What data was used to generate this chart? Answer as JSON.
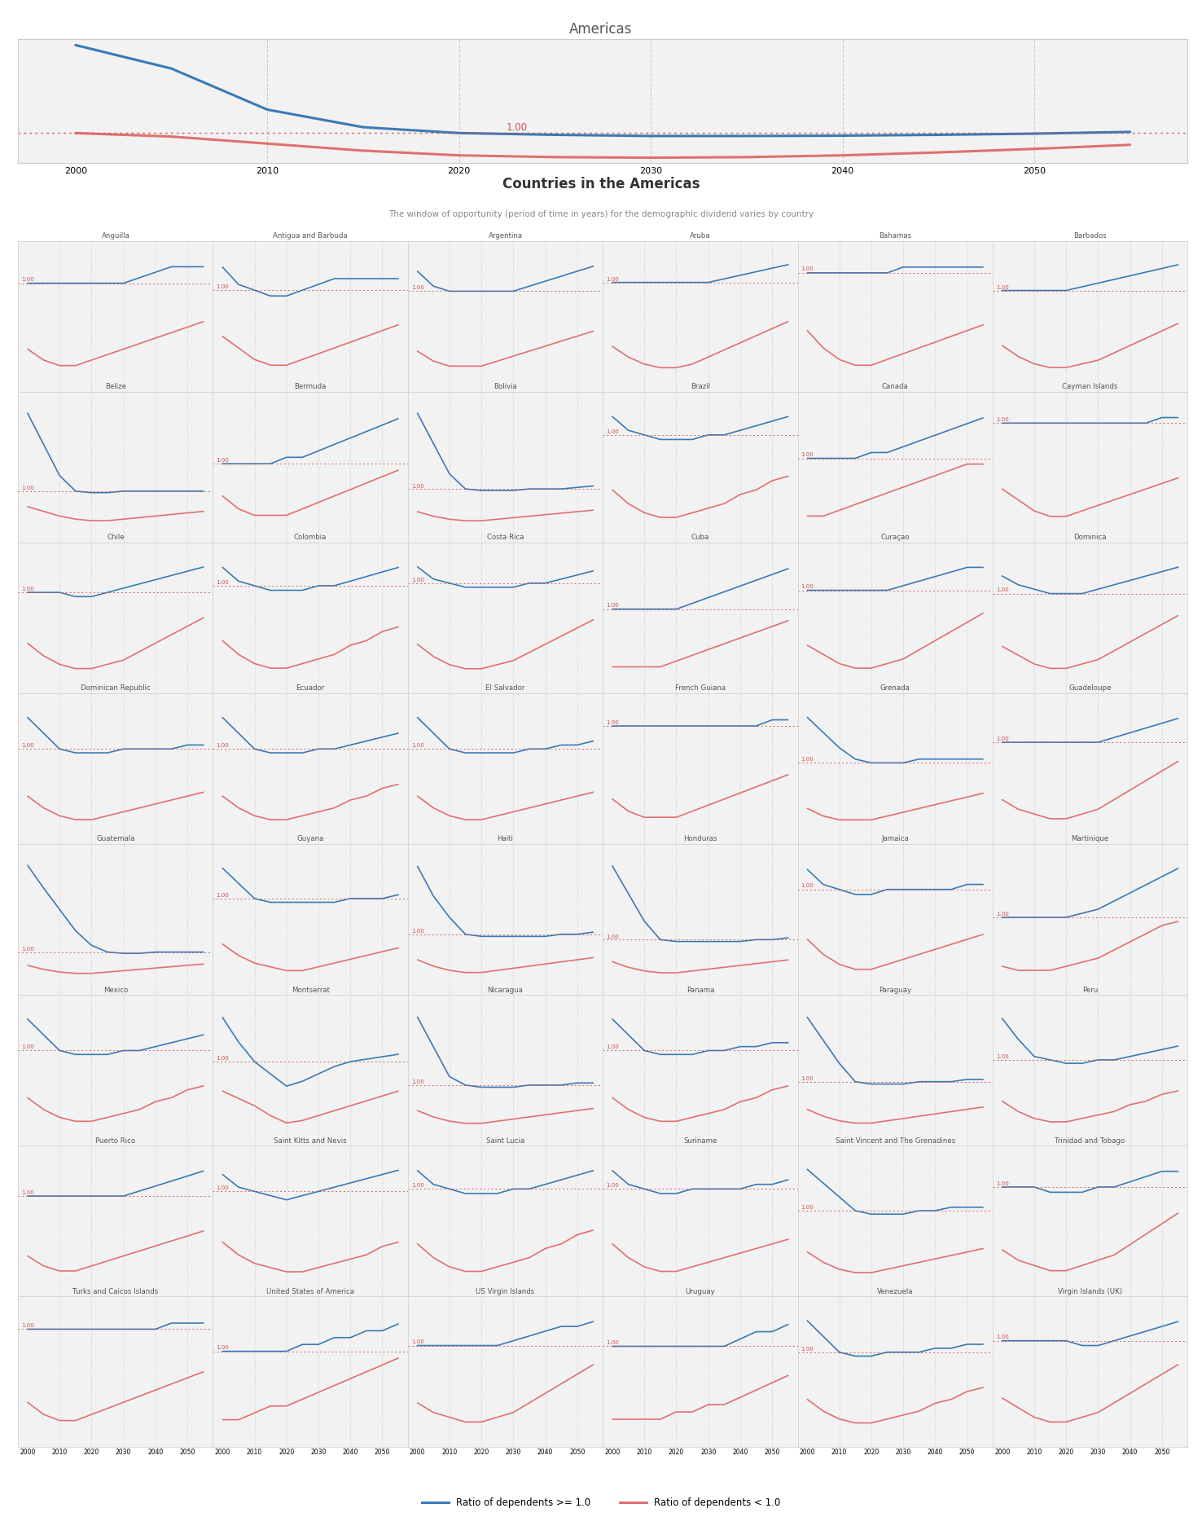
{
  "title_americas": "Americas",
  "title_countries": "Countries in the Americas",
  "subtitle_countries": "The window of opportunity (period of time in years) for the demographic dividend varies by country",
  "legend_blue": "Ratio of dependents >= 1.0",
  "legend_red": "Ratio of dependents < 1.0",
  "years": [
    2000,
    2005,
    2010,
    2015,
    2020,
    2025,
    2030,
    2035,
    2040,
    2045,
    2050,
    2055
  ],
  "blue_color": "#3a7ab5",
  "red_color": "#e07070",
  "ref_color": "#d05050",
  "panel_bg": "#f2f2f2",
  "grid_color": "#cccccc",
  "americas_blue": [
    1.75,
    1.55,
    1.2,
    1.05,
    1.0,
    0.985,
    0.975,
    0.975,
    0.978,
    0.985,
    0.995,
    1.01
  ],
  "americas_red": [
    1.0,
    0.97,
    0.91,
    0.85,
    0.81,
    0.795,
    0.79,
    0.795,
    0.81,
    0.835,
    0.865,
    0.9
  ],
  "countries": [
    "Anguilla",
    "Antigua and Barbuda",
    "Argentina",
    "Aruba",
    "Bahamas",
    "Barbados",
    "Belize",
    "Bermuda",
    "Bolivia",
    "Brazil",
    "Canada",
    "Cayman Islands",
    "Chile",
    "Colombia",
    "Costa Rica",
    "Cuba",
    "Curaçao",
    "Dominica",
    "Dominican Republic",
    "Ecuador",
    "El Salvador",
    "French Guiana",
    "Grenada",
    "Guadeloupe",
    "Guatemala",
    "Guyana",
    "Haiti",
    "Honduras",
    "Jamaica",
    "Martinique",
    "Mexico",
    "Montserrat",
    "Nicaragua",
    "Panama",
    "Paraguay",
    "Peru",
    "Puerto Rico",
    "Saint Kitts and Nevis",
    "Saint Lucia",
    "Suriname",
    "Saint Vincent and The Grenadines",
    "Trinidad and Tobago",
    "Turks and Caicos Islands",
    "United States of America",
    "US Virgin Islands",
    "Uruguay",
    "Venezuela",
    "Virgin Islands (UK)"
  ],
  "country_blue": {
    "Anguilla": [
      1.0,
      1.0,
      1.0,
      1.0,
      1.0,
      1.0,
      1.0,
      1.01,
      1.02,
      1.03,
      1.03,
      1.03
    ],
    "Antigua and Barbuda": [
      1.04,
      1.01,
      1.0,
      0.99,
      0.99,
      1.0,
      1.01,
      1.02,
      1.02,
      1.02,
      1.02,
      1.02
    ],
    "Argentina": [
      1.04,
      1.01,
      1.0,
      1.0,
      1.0,
      1.0,
      1.0,
      1.01,
      1.02,
      1.03,
      1.04,
      1.05
    ],
    "Aruba": [
      1.0,
      1.0,
      1.0,
      1.0,
      1.0,
      1.0,
      1.0,
      1.01,
      1.02,
      1.03,
      1.04,
      1.05
    ],
    "Bahamas": [
      1.0,
      1.0,
      1.0,
      1.0,
      1.0,
      1.0,
      1.01,
      1.01,
      1.01,
      1.01,
      1.01,
      1.01
    ],
    "Barbados": [
      1.0,
      1.0,
      1.0,
      1.0,
      1.0,
      1.01,
      1.02,
      1.03,
      1.04,
      1.05,
      1.06,
      1.07
    ],
    "Belize": [
      1.5,
      1.3,
      1.1,
      1.0,
      0.99,
      0.99,
      1.0,
      1.0,
      1.0,
      1.0,
      1.0,
      1.0
    ],
    "Bermuda": [
      1.0,
      1.0,
      1.0,
      1.0,
      1.01,
      1.01,
      1.02,
      1.03,
      1.04,
      1.05,
      1.06,
      1.07
    ],
    "Bolivia": [
      1.5,
      1.3,
      1.1,
      1.0,
      0.99,
      0.99,
      0.99,
      1.0,
      1.0,
      1.0,
      1.01,
      1.02
    ],
    "Brazil": [
      1.04,
      1.01,
      1.0,
      0.99,
      0.99,
      0.99,
      1.0,
      1.0,
      1.01,
      1.02,
      1.03,
      1.04
    ],
    "Canada": [
      1.0,
      1.0,
      1.0,
      1.0,
      1.01,
      1.01,
      1.02,
      1.03,
      1.04,
      1.05,
      1.06,
      1.07
    ],
    "Cayman Islands": [
      1.0,
      1.0,
      1.0,
      1.0,
      1.0,
      1.0,
      1.0,
      1.0,
      1.0,
      1.0,
      1.01,
      1.01
    ],
    "Chile": [
      1.0,
      1.0,
      1.0,
      0.99,
      0.99,
      1.0,
      1.01,
      1.02,
      1.03,
      1.04,
      1.05,
      1.06
    ],
    "Colombia": [
      1.04,
      1.01,
      1.0,
      0.99,
      0.99,
      0.99,
      1.0,
      1.0,
      1.01,
      1.02,
      1.03,
      1.04
    ],
    "Costa Rica": [
      1.04,
      1.01,
      1.0,
      0.99,
      0.99,
      0.99,
      0.99,
      1.0,
      1.0,
      1.01,
      1.02,
      1.03
    ],
    "Cuba": [
      1.0,
      1.0,
      1.0,
      1.0,
      1.0,
      1.01,
      1.02,
      1.03,
      1.04,
      1.05,
      1.06,
      1.07
    ],
    "Curaçao": [
      1.0,
      1.0,
      1.0,
      1.0,
      1.0,
      1.0,
      1.01,
      1.02,
      1.03,
      1.04,
      1.05,
      1.05
    ],
    "Dominica": [
      1.04,
      1.02,
      1.01,
      1.0,
      1.0,
      1.0,
      1.01,
      1.02,
      1.03,
      1.04,
      1.05,
      1.06
    ],
    "Dominican Republic": [
      1.08,
      1.04,
      1.0,
      0.99,
      0.99,
      0.99,
      1.0,
      1.0,
      1.0,
      1.0,
      1.01,
      1.01
    ],
    "Ecuador": [
      1.08,
      1.04,
      1.0,
      0.99,
      0.99,
      0.99,
      1.0,
      1.0,
      1.01,
      1.02,
      1.03,
      1.04
    ],
    "El Salvador": [
      1.08,
      1.04,
      1.0,
      0.99,
      0.99,
      0.99,
      0.99,
      1.0,
      1.0,
      1.01,
      1.01,
      1.02
    ],
    "French Guiana": [
      1.0,
      1.0,
      1.0,
      1.0,
      1.0,
      1.0,
      1.0,
      1.0,
      1.0,
      1.0,
      1.01,
      1.01
    ],
    "Grenada": [
      1.12,
      1.08,
      1.04,
      1.01,
      1.0,
      1.0,
      1.0,
      1.01,
      1.01,
      1.01,
      1.01,
      1.01
    ],
    "Guadeloupe": [
      1.0,
      1.0,
      1.0,
      1.0,
      1.0,
      1.0,
      1.0,
      1.01,
      1.02,
      1.03,
      1.04,
      1.05
    ],
    "Guatemala": [
      1.65,
      1.48,
      1.32,
      1.16,
      1.05,
      1.0,
      0.99,
      0.99,
      1.0,
      1.0,
      1.0,
      1.0
    ],
    "Guyana": [
      1.08,
      1.04,
      1.0,
      0.99,
      0.99,
      0.99,
      0.99,
      0.99,
      1.0,
      1.0,
      1.0,
      1.01
    ],
    "Haiti": [
      1.32,
      1.18,
      1.08,
      1.0,
      0.99,
      0.99,
      0.99,
      0.99,
      0.99,
      1.0,
      1.0,
      1.01
    ],
    "Honduras": [
      1.4,
      1.25,
      1.1,
      1.0,
      0.99,
      0.99,
      0.99,
      0.99,
      0.99,
      1.0,
      1.0,
      1.01
    ],
    "Jamaica": [
      1.04,
      1.01,
      1.0,
      0.99,
      0.99,
      1.0,
      1.0,
      1.0,
      1.0,
      1.0,
      1.01,
      1.01
    ],
    "Martinique": [
      1.0,
      1.0,
      1.0,
      1.0,
      1.0,
      1.01,
      1.02,
      1.04,
      1.06,
      1.08,
      1.1,
      1.12
    ],
    "Mexico": [
      1.08,
      1.04,
      1.0,
      0.99,
      0.99,
      0.99,
      1.0,
      1.0,
      1.01,
      1.02,
      1.03,
      1.04
    ],
    "Montserrat": [
      1.18,
      1.08,
      1.0,
      0.95,
      0.9,
      0.92,
      0.95,
      0.98,
      1.0,
      1.01,
      1.02,
      1.03
    ],
    "Nicaragua": [
      1.32,
      1.18,
      1.04,
      1.0,
      0.99,
      0.99,
      0.99,
      1.0,
      1.0,
      1.0,
      1.01,
      1.01
    ],
    "Panama": [
      1.08,
      1.04,
      1.0,
      0.99,
      0.99,
      0.99,
      1.0,
      1.0,
      1.01,
      1.01,
      1.02,
      1.02
    ],
    "Paraguay": [
      1.28,
      1.18,
      1.08,
      1.0,
      0.99,
      0.99,
      0.99,
      1.0,
      1.0,
      1.0,
      1.01,
      1.01
    ],
    "Peru": [
      1.12,
      1.06,
      1.01,
      1.0,
      0.99,
      0.99,
      1.0,
      1.0,
      1.01,
      1.02,
      1.03,
      1.04
    ],
    "Puerto Rico": [
      1.0,
      1.0,
      1.0,
      1.0,
      1.0,
      1.0,
      1.0,
      1.01,
      1.02,
      1.03,
      1.04,
      1.05
    ],
    "Saint Kitts and Nevis": [
      1.04,
      1.01,
      1.0,
      0.99,
      0.98,
      0.99,
      1.0,
      1.01,
      1.02,
      1.03,
      1.04,
      1.05
    ],
    "Saint Lucia": [
      1.04,
      1.01,
      1.0,
      0.99,
      0.99,
      0.99,
      1.0,
      1.0,
      1.01,
      1.02,
      1.03,
      1.04
    ],
    "Suriname": [
      1.04,
      1.01,
      1.0,
      0.99,
      0.99,
      1.0,
      1.0,
      1.0,
      1.0,
      1.01,
      1.01,
      1.02
    ],
    "Saint Vincent and The Grenadines": [
      1.12,
      1.08,
      1.04,
      1.0,
      0.99,
      0.99,
      0.99,
      1.0,
      1.0,
      1.01,
      1.01,
      1.01
    ],
    "Trinidad and Tobago": [
      1.0,
      1.0,
      1.0,
      0.99,
      0.99,
      0.99,
      1.0,
      1.0,
      1.01,
      1.02,
      1.03,
      1.03
    ],
    "Turks and Caicos Islands": [
      1.0,
      1.0,
      1.0,
      1.0,
      1.0,
      1.0,
      1.0,
      1.0,
      1.0,
      1.01,
      1.01,
      1.01
    ],
    "United States of America": [
      1.0,
      1.0,
      1.0,
      1.0,
      1.0,
      1.01,
      1.01,
      1.02,
      1.02,
      1.03,
      1.03,
      1.04
    ],
    "US Virgin Islands": [
      1.0,
      1.0,
      1.0,
      1.0,
      1.0,
      1.0,
      1.01,
      1.02,
      1.03,
      1.04,
      1.04,
      1.05
    ],
    "Uruguay": [
      1.0,
      1.0,
      1.0,
      1.0,
      1.0,
      1.0,
      1.0,
      1.0,
      1.01,
      1.02,
      1.02,
      1.03
    ],
    "Venezuela": [
      1.08,
      1.04,
      1.0,
      0.99,
      0.99,
      1.0,
      1.0,
      1.0,
      1.01,
      1.01,
      1.02,
      1.02
    ],
    "Virgin Islands (UK)": [
      1.0,
      1.0,
      1.0,
      1.0,
      1.0,
      0.99,
      0.99,
      1.0,
      1.01,
      1.02,
      1.03,
      1.04
    ]
  },
  "country_red": {
    "Anguilla": [
      0.88,
      0.86,
      0.85,
      0.85,
      0.86,
      0.87,
      0.88,
      0.89,
      0.9,
      0.91,
      0.92,
      0.93
    ],
    "Antigua and Barbuda": [
      0.92,
      0.9,
      0.88,
      0.87,
      0.87,
      0.88,
      0.89,
      0.9,
      0.91,
      0.92,
      0.93,
      0.94
    ],
    "Argentina": [
      0.88,
      0.86,
      0.85,
      0.85,
      0.85,
      0.86,
      0.87,
      0.88,
      0.89,
      0.9,
      0.91,
      0.92
    ],
    "Aruba": [
      0.82,
      0.79,
      0.77,
      0.76,
      0.76,
      0.77,
      0.79,
      0.81,
      0.83,
      0.85,
      0.87,
      0.89
    ],
    "Bahamas": [
      0.9,
      0.87,
      0.85,
      0.84,
      0.84,
      0.85,
      0.86,
      0.87,
      0.88,
      0.89,
      0.9,
      0.91
    ],
    "Barbados": [
      0.85,
      0.82,
      0.8,
      0.79,
      0.79,
      0.8,
      0.81,
      0.83,
      0.85,
      0.87,
      0.89,
      0.91
    ],
    "Belize": [
      0.9,
      0.87,
      0.84,
      0.82,
      0.81,
      0.81,
      0.82,
      0.83,
      0.84,
      0.85,
      0.86,
      0.87
    ],
    "Bermuda": [
      0.95,
      0.93,
      0.92,
      0.92,
      0.92,
      0.93,
      0.94,
      0.95,
      0.96,
      0.97,
      0.98,
      0.99
    ],
    "Bolivia": [
      0.85,
      0.82,
      0.8,
      0.79,
      0.79,
      0.8,
      0.81,
      0.82,
      0.83,
      0.84,
      0.85,
      0.86
    ],
    "Brazil": [
      0.88,
      0.85,
      0.83,
      0.82,
      0.82,
      0.83,
      0.84,
      0.85,
      0.87,
      0.88,
      0.9,
      0.91
    ],
    "Canada": [
      0.9,
      0.9,
      0.91,
      0.92,
      0.93,
      0.94,
      0.95,
      0.96,
      0.97,
      0.98,
      0.99,
      0.99
    ],
    "Cayman Islands": [
      0.88,
      0.86,
      0.84,
      0.83,
      0.83,
      0.84,
      0.85,
      0.86,
      0.87,
      0.88,
      0.89,
      0.9
    ],
    "Chile": [
      0.88,
      0.85,
      0.83,
      0.82,
      0.82,
      0.83,
      0.84,
      0.86,
      0.88,
      0.9,
      0.92,
      0.94
    ],
    "Colombia": [
      0.88,
      0.85,
      0.83,
      0.82,
      0.82,
      0.83,
      0.84,
      0.85,
      0.87,
      0.88,
      0.9,
      0.91
    ],
    "Costa Rica": [
      0.85,
      0.82,
      0.8,
      0.79,
      0.79,
      0.8,
      0.81,
      0.83,
      0.85,
      0.87,
      0.89,
      0.91
    ],
    "Cuba": [
      0.9,
      0.9,
      0.9,
      0.9,
      0.91,
      0.92,
      0.93,
      0.94,
      0.95,
      0.96,
      0.97,
      0.98
    ],
    "Curaçao": [
      0.88,
      0.86,
      0.84,
      0.83,
      0.83,
      0.84,
      0.85,
      0.87,
      0.89,
      0.91,
      0.93,
      0.95
    ],
    "Dominica": [
      0.88,
      0.86,
      0.84,
      0.83,
      0.83,
      0.84,
      0.85,
      0.87,
      0.89,
      0.91,
      0.93,
      0.95
    ],
    "Dominican Republic": [
      0.88,
      0.85,
      0.83,
      0.82,
      0.82,
      0.83,
      0.84,
      0.85,
      0.86,
      0.87,
      0.88,
      0.89
    ],
    "Ecuador": [
      0.88,
      0.85,
      0.83,
      0.82,
      0.82,
      0.83,
      0.84,
      0.85,
      0.87,
      0.88,
      0.9,
      0.91
    ],
    "El Salvador": [
      0.88,
      0.85,
      0.83,
      0.82,
      0.82,
      0.83,
      0.84,
      0.85,
      0.86,
      0.87,
      0.88,
      0.89
    ],
    "French Guiana": [
      0.88,
      0.86,
      0.85,
      0.85,
      0.85,
      0.86,
      0.87,
      0.88,
      0.89,
      0.9,
      0.91,
      0.92
    ],
    "Grenada": [
      0.88,
      0.86,
      0.85,
      0.85,
      0.85,
      0.86,
      0.87,
      0.88,
      0.89,
      0.9,
      0.91,
      0.92
    ],
    "Guadeloupe": [
      0.88,
      0.86,
      0.85,
      0.84,
      0.84,
      0.85,
      0.86,
      0.88,
      0.9,
      0.92,
      0.94,
      0.96
    ],
    "Guatemala": [
      0.9,
      0.87,
      0.85,
      0.84,
      0.84,
      0.85,
      0.86,
      0.87,
      0.88,
      0.89,
      0.9,
      0.91
    ],
    "Guyana": [
      0.88,
      0.85,
      0.83,
      0.82,
      0.81,
      0.81,
      0.82,
      0.83,
      0.84,
      0.85,
      0.86,
      0.87
    ],
    "Haiti": [
      0.88,
      0.85,
      0.83,
      0.82,
      0.82,
      0.83,
      0.84,
      0.85,
      0.86,
      0.87,
      0.88,
      0.89
    ],
    "Honduras": [
      0.88,
      0.85,
      0.83,
      0.82,
      0.82,
      0.83,
      0.84,
      0.85,
      0.86,
      0.87,
      0.88,
      0.89
    ],
    "Jamaica": [
      0.9,
      0.87,
      0.85,
      0.84,
      0.84,
      0.85,
      0.86,
      0.87,
      0.88,
      0.89,
      0.9,
      0.91
    ],
    "Martinique": [
      0.88,
      0.87,
      0.87,
      0.87,
      0.88,
      0.89,
      0.9,
      0.92,
      0.94,
      0.96,
      0.98,
      0.99
    ],
    "Mexico": [
      0.88,
      0.85,
      0.83,
      0.82,
      0.82,
      0.83,
      0.84,
      0.85,
      0.87,
      0.88,
      0.9,
      0.91
    ],
    "Montserrat": [
      0.88,
      0.85,
      0.82,
      0.78,
      0.75,
      0.76,
      0.78,
      0.8,
      0.82,
      0.84,
      0.86,
      0.88
    ],
    "Nicaragua": [
      0.88,
      0.85,
      0.83,
      0.82,
      0.82,
      0.83,
      0.84,
      0.85,
      0.86,
      0.87,
      0.88,
      0.89
    ],
    "Panama": [
      0.88,
      0.85,
      0.83,
      0.82,
      0.82,
      0.83,
      0.84,
      0.85,
      0.87,
      0.88,
      0.9,
      0.91
    ],
    "Paraguay": [
      0.88,
      0.85,
      0.83,
      0.82,
      0.82,
      0.83,
      0.84,
      0.85,
      0.86,
      0.87,
      0.88,
      0.89
    ],
    "Peru": [
      0.88,
      0.85,
      0.83,
      0.82,
      0.82,
      0.83,
      0.84,
      0.85,
      0.87,
      0.88,
      0.9,
      0.91
    ],
    "Puerto Rico": [
      0.88,
      0.86,
      0.85,
      0.85,
      0.86,
      0.87,
      0.88,
      0.89,
      0.9,
      0.91,
      0.92,
      0.93
    ],
    "Saint Kitts and Nevis": [
      0.88,
      0.85,
      0.83,
      0.82,
      0.81,
      0.81,
      0.82,
      0.83,
      0.84,
      0.85,
      0.87,
      0.88
    ],
    "Saint Lucia": [
      0.88,
      0.85,
      0.83,
      0.82,
      0.82,
      0.83,
      0.84,
      0.85,
      0.87,
      0.88,
      0.9,
      0.91
    ],
    "Suriname": [
      0.88,
      0.85,
      0.83,
      0.82,
      0.82,
      0.83,
      0.84,
      0.85,
      0.86,
      0.87,
      0.88,
      0.89
    ],
    "Saint Vincent and The Grenadines": [
      0.88,
      0.85,
      0.83,
      0.82,
      0.82,
      0.83,
      0.84,
      0.85,
      0.86,
      0.87,
      0.88,
      0.89
    ],
    "Trinidad and Tobago": [
      0.88,
      0.86,
      0.85,
      0.84,
      0.84,
      0.85,
      0.86,
      0.87,
      0.89,
      0.91,
      0.93,
      0.95
    ],
    "Turks and Caicos Islands": [
      0.88,
      0.86,
      0.85,
      0.85,
      0.86,
      0.87,
      0.88,
      0.89,
      0.9,
      0.91,
      0.92,
      0.93
    ],
    "United States of America": [
      0.9,
      0.9,
      0.91,
      0.92,
      0.92,
      0.93,
      0.94,
      0.95,
      0.96,
      0.97,
      0.98,
      0.99
    ],
    "US Virgin Islands": [
      0.88,
      0.86,
      0.85,
      0.84,
      0.84,
      0.85,
      0.86,
      0.88,
      0.9,
      0.92,
      0.94,
      0.96
    ],
    "Uruguay": [
      0.9,
      0.9,
      0.9,
      0.9,
      0.91,
      0.91,
      0.92,
      0.92,
      0.93,
      0.94,
      0.95,
      0.96
    ],
    "Venezuela": [
      0.88,
      0.85,
      0.83,
      0.82,
      0.82,
      0.83,
      0.84,
      0.85,
      0.87,
      0.88,
      0.9,
      0.91
    ],
    "Virgin Islands (UK)": [
      0.88,
      0.86,
      0.84,
      0.83,
      0.83,
      0.84,
      0.85,
      0.87,
      0.89,
      0.91,
      0.93,
      0.95
    ]
  },
  "tick_years": [
    2000,
    2010,
    2020,
    2030,
    2040,
    2050
  ],
  "xlim": [
    1997,
    2058
  ],
  "n_cols": 6
}
